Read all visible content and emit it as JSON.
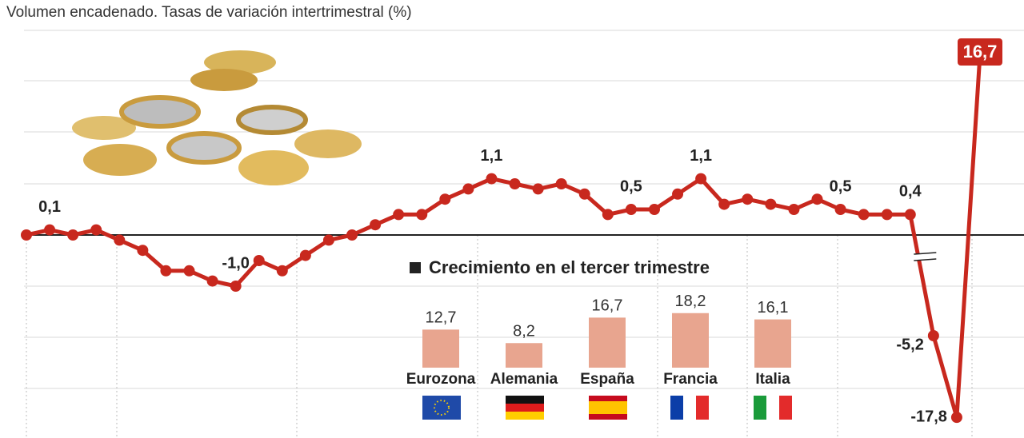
{
  "chart_data": [
    {
      "type": "line",
      "subtitle": "Volumen encadenado. Tasas de variación intertrimestral (%)",
      "color": "#c8281e",
      "values": [
        0.0,
        0.1,
        0.0,
        0.1,
        -0.1,
        -0.3,
        -0.7,
        -0.7,
        -0.9,
        -1.0,
        -0.5,
        -0.7,
        -0.4,
        -0.1,
        0.0,
        0.2,
        0.4,
        0.4,
        0.7,
        0.9,
        1.1,
        1.0,
        0.9,
        1.0,
        0.8,
        0.4,
        0.5,
        0.5,
        0.8,
        1.1,
        0.6,
        0.7,
        0.6,
        0.5,
        0.7,
        0.5,
        0.4,
        0.4,
        0.4,
        -5.2,
        -17.8,
        16.7
      ],
      "value_labels": [
        null,
        "0,1",
        null,
        null,
        null,
        null,
        null,
        null,
        null,
        "-1,0",
        null,
        null,
        null,
        null,
        null,
        null,
        null,
        null,
        null,
        null,
        "1,1",
        null,
        null,
        null,
        null,
        null,
        "0,5",
        null,
        null,
        "1,1",
        null,
        null,
        null,
        null,
        null,
        "0,5",
        null,
        null,
        "0,4",
        "-5,2",
        "-17,8",
        "16,7"
      ],
      "ylim": [
        -20,
        20
      ],
      "linear_range": [
        -1.5,
        1.5
      ],
      "axis_break": true
    },
    {
      "type": "bar",
      "title": "Crecimiento en el tercer trimestre",
      "color": "#e8a58f",
      "categories": [
        "Eurozona",
        "Alemania",
        "España",
        "Francia",
        "Italia"
      ],
      "values": [
        12.7,
        8.2,
        16.7,
        18.2,
        16.1
      ],
      "value_labels": [
        "12,7",
        "8,2",
        "16,7",
        "18,2",
        "16,1"
      ],
      "ylim": [
        0,
        20
      ]
    }
  ]
}
